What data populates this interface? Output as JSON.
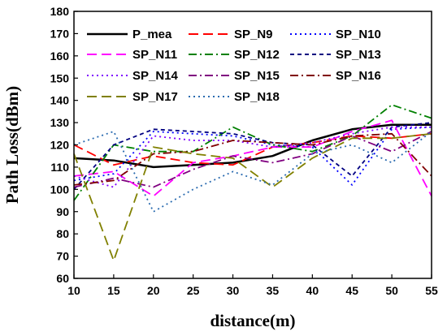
{
  "chart_data": {
    "type": "line",
    "title": "",
    "xlabel": "distance(m)",
    "ylabel": "Path Loss(dBm)",
    "xlim": [
      10,
      55
    ],
    "ylim": [
      60,
      180
    ],
    "x_ticks": [
      "10",
      "15",
      "20",
      "25",
      "30",
      "35",
      "40",
      "45",
      "50",
      "55"
    ],
    "y_ticks": [
      "60",
      "70",
      "80",
      "90",
      "100",
      "110",
      "120",
      "130",
      "140",
      "150",
      "160",
      "170",
      "180"
    ],
    "grid": false,
    "legend_position": "top",
    "x": [
      10,
      15,
      20,
      25,
      30,
      35,
      40,
      45,
      50,
      55
    ],
    "series": [
      {
        "name": "P_mea",
        "color": "#000000",
        "dash": "solid",
        "values": [
          114,
          113,
          110,
          111,
          112,
          115,
          122,
          127,
          129,
          129
        ]
      },
      {
        "name": "SP_N9",
        "color": "#ff0000",
        "dash": "longdash",
        "values": [
          120,
          111,
          115,
          112,
          111,
          119,
          121,
          124,
          123,
          125
        ]
      },
      {
        "name": "SP_N10",
        "color": "#0000ff",
        "dash": "dot",
        "values": [
          104,
          107,
          126,
          125,
          124,
          120,
          119,
          102,
          127,
          128
        ]
      },
      {
        "name": "SP_N11",
        "color": "#ff00ff",
        "dash": "longdash",
        "values": [
          106,
          108,
          97,
          112,
          115,
          119,
          119,
          126,
          131,
          97
        ]
      },
      {
        "name": "SP_N12",
        "color": "#008000",
        "dash": "dashdot",
        "values": [
          95,
          120,
          117,
          117,
          128,
          120,
          117,
          124,
          138,
          132
        ]
      },
      {
        "name": "SP_N13",
        "color": "#000080",
        "dash": "shortdash",
        "values": [
          100,
          120,
          127,
          126,
          125,
          121,
          120,
          106,
          128,
          130
        ]
      },
      {
        "name": "SP_N14",
        "color": "#8000ff",
        "dash": "dot",
        "values": [
          106,
          101,
          124,
          122,
          122,
          119,
          121,
          125,
          128,
          128
        ]
      },
      {
        "name": "SP_N15",
        "color": "#800080",
        "dash": "dashdot",
        "values": [
          101,
          105,
          101,
          109,
          115,
          112,
          116,
          124,
          117,
          126
        ]
      },
      {
        "name": "SP_N16",
        "color": "#800000",
        "dash": "dashdot",
        "values": [
          102,
          104,
          116,
          117,
          122,
          121,
          120,
          124,
          125,
          106
        ]
      },
      {
        "name": "SP_N17",
        "color": "#808000",
        "dash": "longdash",
        "values": [
          116,
          68,
          119,
          116,
          114,
          101,
          114,
          123,
          123,
          125
        ]
      },
      {
        "name": "SP_N18",
        "color": "#2a6bb0",
        "dash": "dot",
        "values": [
          120,
          126,
          90,
          100,
          108,
          102,
          116,
          120,
          112,
          126
        ]
      }
    ]
  }
}
